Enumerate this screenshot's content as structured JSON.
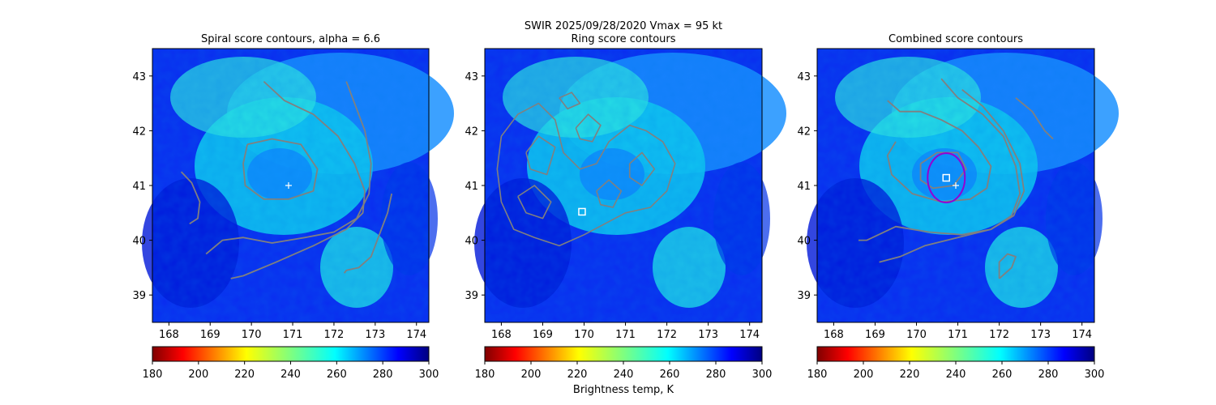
{
  "figure": {
    "suptitle_line1": "SWIR  2025/09/28/2020    Vmax = 95 kt",
    "colorbar_label": "Brightness temp, K"
  },
  "colors": {
    "contour": "#808080",
    "marker_center": "#ffffff",
    "ring": "#9400d3",
    "colormap": "jet_r"
  },
  "icons": {
    "center_marker": "plus-marker",
    "ring_center_marker": "square-marker",
    "ring_circle": "circle-marker"
  },
  "chart_data": [
    {
      "type": "heatmap",
      "title": "Spiral score contours, alpha =  6.6",
      "xlim": [
        167.6,
        174.3
      ],
      "ylim": [
        38.5,
        43.5
      ],
      "xticks": [
        "168",
        "169",
        "170",
        "171",
        "172",
        "173",
        "174"
      ],
      "yticks": [
        "39",
        "40",
        "41",
        "42",
        "43"
      ],
      "colorbar": {
        "range": [
          180,
          300
        ],
        "ticks": [
          "180",
          "200",
          "220",
          "240",
          "260",
          "280",
          "300"
        ],
        "label": ""
      },
      "center_plus": [
        170.9,
        41.0
      ],
      "contours": [
        [
          [
            170.3,
            42.9
          ],
          [
            170.8,
            42.55
          ],
          [
            171.5,
            42.3
          ],
          [
            172.1,
            41.9
          ],
          [
            172.5,
            41.4
          ],
          [
            172.75,
            40.9
          ],
          [
            172.7,
            40.5
          ],
          [
            172.3,
            40.2
          ],
          [
            171.5,
            39.9
          ],
          [
            170.6,
            39.6
          ],
          [
            169.8,
            39.35
          ],
          [
            169.5,
            39.3
          ]
        ],
        [
          [
            172.3,
            42.9
          ],
          [
            172.5,
            42.5
          ],
          [
            172.75,
            42.0
          ],
          [
            172.9,
            41.4
          ],
          [
            172.85,
            40.85
          ],
          [
            172.55,
            40.4
          ],
          [
            172.0,
            40.15
          ],
          [
            171.3,
            40.05
          ],
          [
            170.5,
            39.95
          ],
          [
            169.8,
            40.05
          ],
          [
            169.3,
            40.0
          ],
          [
            168.9,
            39.75
          ]
        ],
        [
          [
            169.9,
            41.75
          ],
          [
            170.5,
            41.85
          ],
          [
            171.2,
            41.75
          ],
          [
            171.6,
            41.3
          ],
          [
            171.5,
            40.9
          ],
          [
            170.9,
            40.75
          ],
          [
            170.3,
            40.75
          ],
          [
            169.85,
            41.0
          ],
          [
            169.8,
            41.4
          ],
          [
            169.9,
            41.75
          ]
        ],
        [
          [
            168.3,
            41.25
          ],
          [
            168.55,
            41.05
          ],
          [
            168.75,
            40.7
          ],
          [
            168.7,
            40.4
          ],
          [
            168.5,
            40.3
          ]
        ],
        [
          [
            173.4,
            40.85
          ],
          [
            173.3,
            40.5
          ],
          [
            173.1,
            40.1
          ],
          [
            172.9,
            39.7
          ],
          [
            172.6,
            39.5
          ],
          [
            172.3,
            39.45
          ],
          [
            172.25,
            39.4
          ]
        ]
      ]
    },
    {
      "type": "heatmap",
      "title": "Ring score contours",
      "xlim": [
        167.6,
        174.3
      ],
      "ylim": [
        38.5,
        43.5
      ],
      "xticks": [
        "168",
        "169",
        "170",
        "171",
        "172",
        "173",
        "174"
      ],
      "yticks": [
        "39",
        "40",
        "41",
        "42",
        "43"
      ],
      "colorbar": {
        "range": [
          180,
          300
        ],
        "ticks": [
          "180",
          "200",
          "220",
          "240",
          "260",
          "280",
          "300"
        ],
        "label": "Brightness temp, K"
      },
      "ring_center": [
        169.95,
        40.52
      ],
      "contours": [
        [
          [
            168.0,
            41.9
          ],
          [
            168.4,
            42.3
          ],
          [
            168.9,
            42.5
          ],
          [
            169.3,
            42.2
          ],
          [
            169.5,
            41.6
          ],
          [
            169.9,
            41.3
          ],
          [
            170.3,
            41.4
          ],
          [
            170.6,
            41.8
          ],
          [
            171.1,
            42.1
          ],
          [
            171.5,
            42.0
          ],
          [
            171.9,
            41.8
          ],
          [
            172.2,
            41.4
          ],
          [
            172.0,
            40.9
          ],
          [
            171.6,
            40.6
          ],
          [
            171.0,
            40.5
          ],
          [
            170.5,
            40.3
          ],
          [
            170.0,
            40.1
          ],
          [
            169.4,
            39.9
          ],
          [
            168.8,
            40.05
          ],
          [
            168.3,
            40.2
          ],
          [
            168.0,
            40.7
          ],
          [
            167.9,
            41.3
          ],
          [
            168.0,
            41.9
          ]
        ],
        [
          [
            168.6,
            41.6
          ],
          [
            168.9,
            41.9
          ],
          [
            169.3,
            41.7
          ],
          [
            169.1,
            41.2
          ],
          [
            168.7,
            41.3
          ],
          [
            168.6,
            41.6
          ]
        ],
        [
          [
            169.8,
            42.05
          ],
          [
            170.1,
            42.3
          ],
          [
            170.4,
            42.1
          ],
          [
            170.2,
            41.8
          ],
          [
            169.9,
            41.85
          ],
          [
            169.8,
            42.05
          ]
        ],
        [
          [
            171.1,
            41.4
          ],
          [
            171.4,
            41.6
          ],
          [
            171.7,
            41.3
          ],
          [
            171.4,
            41.0
          ],
          [
            171.1,
            41.15
          ],
          [
            171.1,
            41.4
          ]
        ],
        [
          [
            168.4,
            40.8
          ],
          [
            168.8,
            41.0
          ],
          [
            169.2,
            40.7
          ],
          [
            169.0,
            40.4
          ],
          [
            168.6,
            40.5
          ],
          [
            168.4,
            40.8
          ]
        ],
        [
          [
            170.3,
            40.9
          ],
          [
            170.6,
            41.1
          ],
          [
            170.9,
            40.9
          ],
          [
            170.7,
            40.6
          ],
          [
            170.4,
            40.65
          ],
          [
            170.3,
            40.9
          ]
        ],
        [
          [
            169.4,
            42.6
          ],
          [
            169.7,
            42.7
          ],
          [
            169.9,
            42.5
          ],
          [
            169.6,
            42.4
          ],
          [
            169.4,
            42.6
          ]
        ]
      ]
    },
    {
      "type": "heatmap",
      "title": "Combined score contours",
      "xlim": [
        167.6,
        174.3
      ],
      "ylim": [
        38.5,
        43.5
      ],
      "xticks": [
        "168",
        "169",
        "170",
        "171",
        "172",
        "173",
        "174"
      ],
      "yticks": [
        "39",
        "40",
        "41",
        "42",
        "43"
      ],
      "colorbar": {
        "range": [
          180,
          300
        ],
        "ticks": [
          "180",
          "200",
          "220",
          "240",
          "260",
          "280",
          "300"
        ],
        "label": ""
      },
      "center_plus": [
        170.95,
        41.0
      ],
      "ring_center": [
        170.72,
        41.14
      ],
      "ring_radius_deg": 0.45,
      "contours": [
        [
          [
            170.6,
            42.95
          ],
          [
            171.0,
            42.6
          ],
          [
            171.6,
            42.3
          ],
          [
            172.1,
            41.9
          ],
          [
            172.4,
            41.35
          ],
          [
            172.5,
            40.85
          ],
          [
            172.3,
            40.45
          ],
          [
            171.8,
            40.2
          ],
          [
            171.0,
            40.05
          ],
          [
            170.2,
            39.9
          ],
          [
            169.6,
            39.7
          ],
          [
            169.1,
            39.6
          ]
        ],
        [
          [
            171.1,
            42.75
          ],
          [
            171.6,
            42.45
          ],
          [
            172.1,
            42.0
          ],
          [
            172.5,
            41.4
          ],
          [
            172.6,
            40.9
          ],
          [
            172.35,
            40.45
          ],
          [
            171.8,
            40.2
          ],
          [
            171.1,
            40.1
          ],
          [
            170.3,
            40.15
          ],
          [
            169.5,
            40.25
          ],
          [
            168.8,
            40.0
          ],
          [
            168.6,
            40.0
          ]
        ],
        [
          [
            169.3,
            42.55
          ],
          [
            169.6,
            42.35
          ],
          [
            170.1,
            42.35
          ],
          [
            170.6,
            42.2
          ],
          [
            171.1,
            42.0
          ],
          [
            171.5,
            41.7
          ],
          [
            171.8,
            41.35
          ],
          [
            171.7,
            40.95
          ],
          [
            171.3,
            40.75
          ],
          [
            170.6,
            40.7
          ],
          [
            169.9,
            40.85
          ],
          [
            169.4,
            41.2
          ],
          [
            169.3,
            41.55
          ],
          [
            169.5,
            41.8
          ]
        ],
        [
          [
            170.1,
            41.4
          ],
          [
            170.5,
            41.6
          ],
          [
            171.0,
            41.6
          ],
          [
            171.2,
            41.3
          ],
          [
            170.9,
            41.0
          ],
          [
            170.4,
            40.95
          ],
          [
            170.1,
            41.1
          ],
          [
            170.1,
            41.4
          ]
        ],
        [
          [
            172.4,
            42.6
          ],
          [
            172.8,
            42.35
          ],
          [
            173.1,
            42.0
          ],
          [
            173.3,
            41.85
          ]
        ],
        [
          [
            172.0,
            39.3
          ],
          [
            172.3,
            39.5
          ],
          [
            172.4,
            39.7
          ],
          [
            172.2,
            39.75
          ],
          [
            172.0,
            39.6
          ],
          [
            172.0,
            39.3
          ]
        ]
      ]
    }
  ]
}
